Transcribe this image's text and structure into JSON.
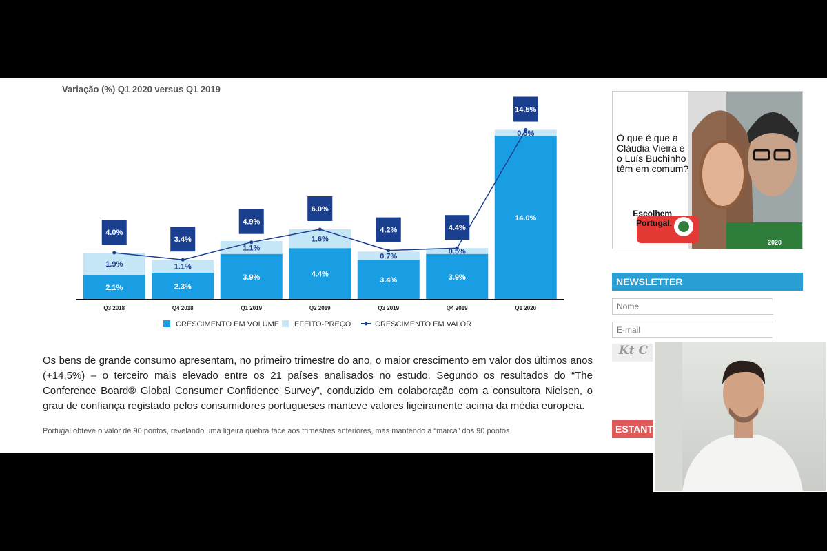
{
  "chart_data": {
    "type": "bar",
    "stacked": true,
    "title": "Variação (%) Q1 2020 versus Q1 2019",
    "categories": [
      "Q3 2018",
      "Q4 2018",
      "Q1 2019",
      "Q2 2019",
      "Q3 2019",
      "Q4 2019",
      "Q1 2020"
    ],
    "series": [
      {
        "name": "CRESCIMENTO EM VOLUME",
        "color": "#1a9ee3",
        "values": [
          2.1,
          2.3,
          3.9,
          4.4,
          3.4,
          3.9,
          14.0
        ],
        "value_labels": [
          "2.1%",
          "2.3%",
          "3.9%",
          "4.4%",
          "3.4%",
          "3.9%",
          "14.0%"
        ]
      },
      {
        "name": "EFEITO-PREÇO",
        "color": "#c5e6f6",
        "values": [
          1.9,
          1.1,
          1.1,
          1.6,
          0.7,
          0.5,
          0.5
        ],
        "value_labels": [
          "1.9%",
          "1.1%",
          "1.1%",
          "1.6%",
          "0.7%",
          "0.5%",
          "0.5%"
        ]
      },
      {
        "name": "CRESCIMENTO EM VALOR",
        "type": "line",
        "color": "#1b3f8f",
        "values": [
          4.0,
          3.4,
          4.9,
          6.0,
          4.2,
          4.4,
          14.5
        ],
        "value_labels": [
          "4.0%",
          "3.4%",
          "4.9%",
          "6.0%",
          "4.2%",
          "4.4%",
          "14.5%"
        ]
      }
    ]
  },
  "article": {
    "paragraphs": [
      "Os bens de grande consumo apresentam, no primeiro trimestre do ano, o maior crescimento em valor dos últimos anos (+14,5%) – o terceiro mais elevado entre os 21 países analisados no estudo. Segundo os resultados do “The Conference Board® Global Consumer Confidence Survey”, conduzido em colaboração com a consultora Nielsen, o grau de confiança registado pelos consumidores portugueses manteve valores ligeiramente acima da média europeia.",
      "Portugal obteve o valor de 90 pontos, revelando uma ligeira quebra face aos trimestres anteriores, mas mantendo a “marca” dos 90 pontos"
    ]
  },
  "sidebar": {
    "ad": {
      "question": "O que é que a Cláudia Vieira e o Luís Buchinho têm em comum?",
      "answer": "Escolhem Portugal.",
      "footer": "2020"
    },
    "newsletter": {
      "title": "NEWSLETTER",
      "name_placeholder": "Nome",
      "email_placeholder": "E-mail",
      "captcha": "Kt C"
    },
    "button": "ESTANT"
  }
}
